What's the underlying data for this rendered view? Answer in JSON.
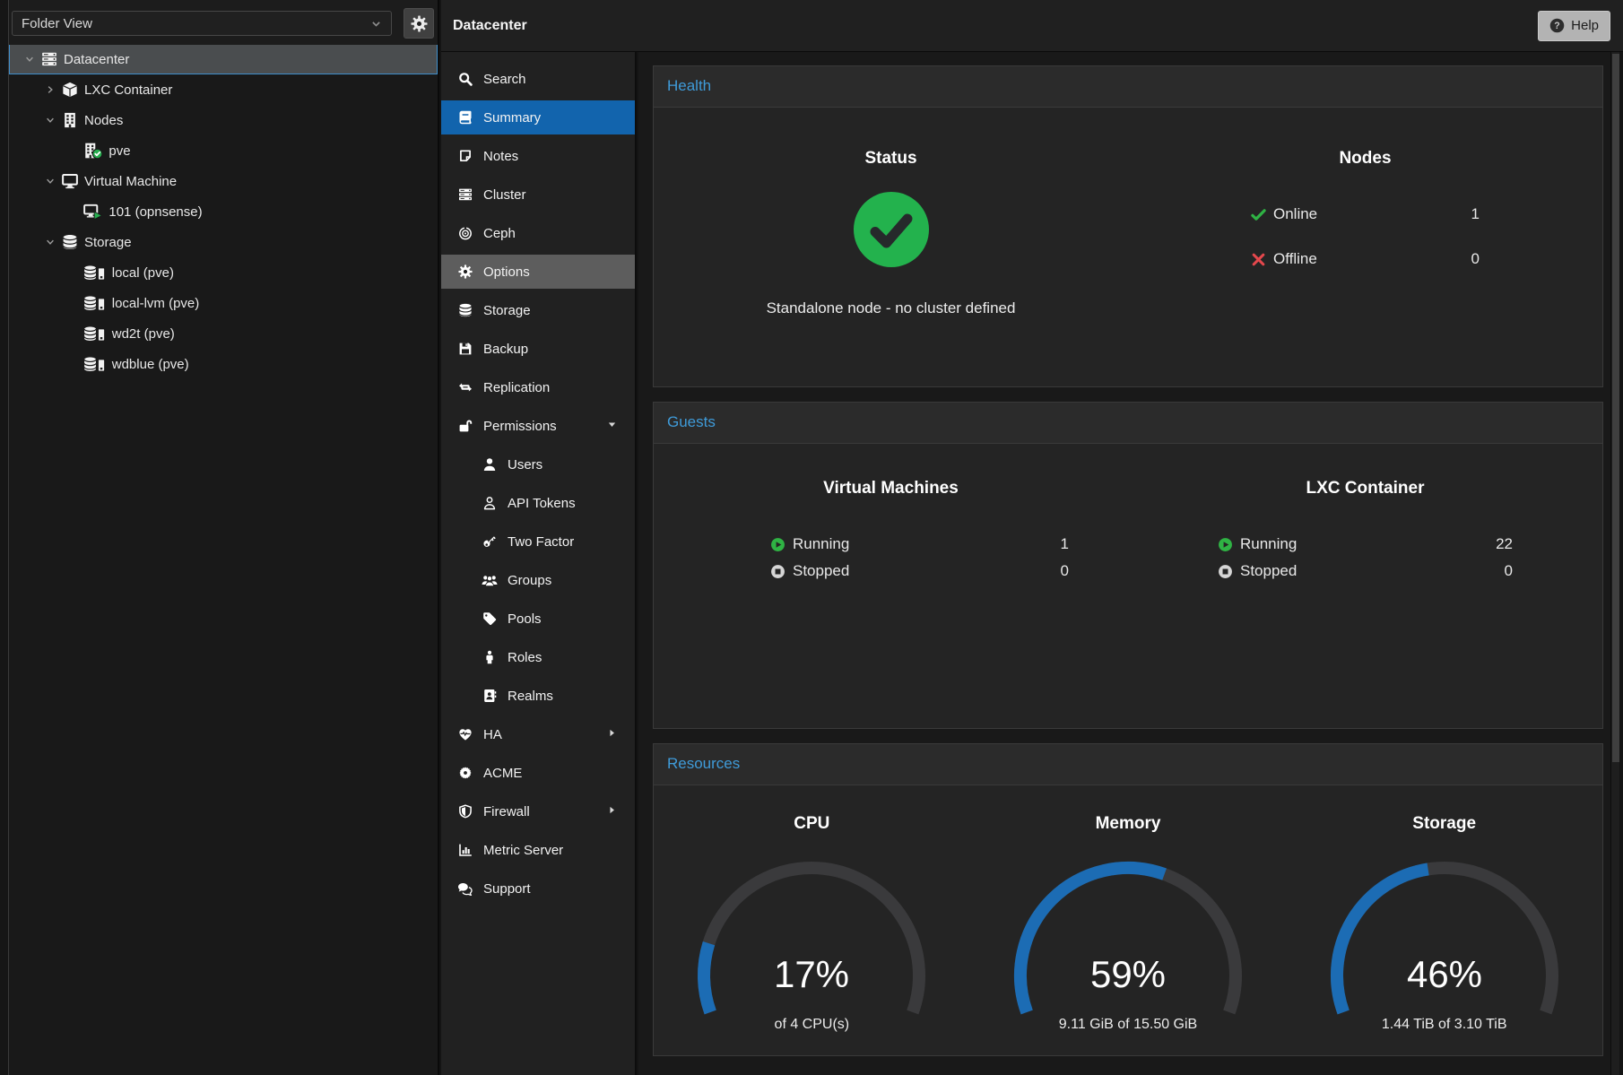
{
  "header": {
    "title": "Datacenter",
    "help_label": "Help",
    "help_icon": "question-circle-icon"
  },
  "tree_toolbar": {
    "view_select_value": "Folder View",
    "select_chevron_icon": "chevron-down-icon",
    "gear_icon": "gear-icon"
  },
  "tree": {
    "items": [
      {
        "label": "Datacenter",
        "icon": "server-rack-icon",
        "depth": 0,
        "state": "expanded",
        "selected": true
      },
      {
        "label": "LXC Container",
        "icon": "cube-icon",
        "depth": 1,
        "state": "collapsed"
      },
      {
        "label": "Nodes",
        "icon": "building-icon",
        "depth": 1,
        "state": "expanded"
      },
      {
        "label": "pve",
        "icon": "building-check-icon",
        "depth": 2,
        "state": "leaf"
      },
      {
        "label": "Virtual Machine",
        "icon": "monitor-icon",
        "depth": 1,
        "state": "expanded"
      },
      {
        "label": "101 (opnsense)",
        "icon": "monitor-play-icon",
        "depth": 2,
        "state": "leaf"
      },
      {
        "label": "Storage",
        "icon": "database-icon",
        "depth": 1,
        "state": "expanded"
      },
      {
        "label": "local (pve)",
        "icon": "database-drive-icon",
        "depth": 2,
        "state": "leaf"
      },
      {
        "label": "local-lvm (pve)",
        "icon": "database-drive-icon",
        "depth": 2,
        "state": "leaf"
      },
      {
        "label": "wd2t (pve)",
        "icon": "database-drive-icon",
        "depth": 2,
        "state": "leaf"
      },
      {
        "label": "wdblue (pve)",
        "icon": "database-drive-icon",
        "depth": 2,
        "state": "leaf"
      }
    ]
  },
  "nav": {
    "items": [
      {
        "label": "Search",
        "icon": "search-icon"
      },
      {
        "label": "Summary",
        "icon": "book-icon",
        "selected": true
      },
      {
        "label": "Notes",
        "icon": "note-icon"
      },
      {
        "label": "Cluster",
        "icon": "server-rack-icon"
      },
      {
        "label": "Ceph",
        "icon": "ceph-icon"
      },
      {
        "label": "Options",
        "icon": "gear-icon",
        "hovered": true
      },
      {
        "label": "Storage",
        "icon": "database-icon"
      },
      {
        "label": "Backup",
        "icon": "floppy-icon"
      },
      {
        "label": "Replication",
        "icon": "sync-arrows-icon"
      },
      {
        "label": "Permissions",
        "icon": "unlock-icon",
        "arrow": "down"
      },
      {
        "label": "Users",
        "icon": "user-icon",
        "indent": true
      },
      {
        "label": "API Tokens",
        "icon": "user-outline-icon",
        "indent": true
      },
      {
        "label": "Two Factor",
        "icon": "key-icon",
        "indent": true
      },
      {
        "label": "Groups",
        "icon": "users-icon",
        "indent": true
      },
      {
        "label": "Pools",
        "icon": "tag-icon",
        "indent": true
      },
      {
        "label": "Roles",
        "icon": "person-icon",
        "indent": true
      },
      {
        "label": "Realms",
        "icon": "address-book-icon",
        "indent": true
      },
      {
        "label": "HA",
        "icon": "heartbeat-icon",
        "arrow": "right"
      },
      {
        "label": "ACME",
        "icon": "seal-icon"
      },
      {
        "label": "Firewall",
        "icon": "shield-icon",
        "arrow": "right"
      },
      {
        "label": "Metric Server",
        "icon": "bar-chart-icon"
      },
      {
        "label": "Support",
        "icon": "comments-icon"
      }
    ]
  },
  "health": {
    "title": "Health",
    "status": {
      "heading": "Status",
      "icon": "status-ok-icon",
      "message": "Standalone node - no cluster defined"
    },
    "nodes": {
      "heading": "Nodes",
      "rows": [
        {
          "icon": "check-icon",
          "label": "Online",
          "value": "1"
        },
        {
          "icon": "cross-icon",
          "label": "Offline",
          "value": "0"
        }
      ]
    }
  },
  "guests": {
    "title": "Guests",
    "columns": [
      {
        "heading": "Virtual Machines",
        "rows": [
          {
            "icon": "play-circle-icon",
            "label": "Running",
            "value": "1"
          },
          {
            "icon": "stop-circle-icon",
            "label": "Stopped",
            "value": "0"
          }
        ]
      },
      {
        "heading": "LXC Container",
        "rows": [
          {
            "icon": "play-circle-icon",
            "label": "Running",
            "value": "22"
          },
          {
            "icon": "stop-circle-icon",
            "label": "Stopped",
            "value": "0"
          }
        ]
      }
    ]
  },
  "resources": {
    "title": "Resources",
    "gauges": [
      {
        "heading": "CPU",
        "percent": 17,
        "percent_label": "17%",
        "sublabel": "of 4 CPU(s)"
      },
      {
        "heading": "Memory",
        "percent": 59,
        "percent_label": "59%",
        "sublabel": "9.11 GiB of 15.50 GiB"
      },
      {
        "heading": "Storage",
        "percent": 46,
        "percent_label": "46%",
        "sublabel": "1.44 TiB of 3.10 TiB"
      }
    ]
  },
  "colors": {
    "accent_blue": "#1264ad",
    "title_blue": "#3f9bd9",
    "gauge_blue": "#1c6cb4",
    "gauge_track": "#3a3a3c",
    "ok_green": "#23b24d",
    "error_red": "#e5484d"
  }
}
